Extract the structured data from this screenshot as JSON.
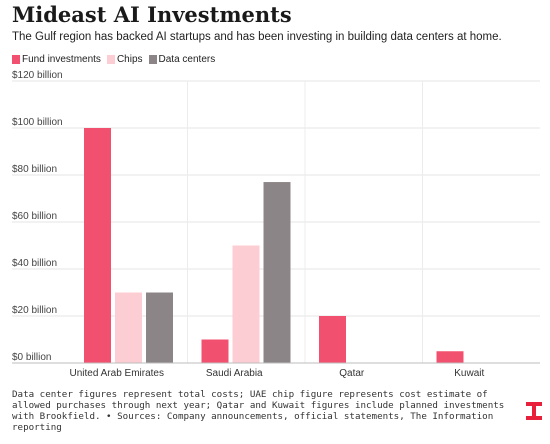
{
  "header": {
    "title": "Mideast AI Investments",
    "subtitle": "The Gulf region has backed AI startups and has been investing in building data centers at home."
  },
  "colors": {
    "fund": "#f2506f",
    "chips": "#fccdd3",
    "data_centers": "#8c8587",
    "logo": "#e8203c"
  },
  "chart_data": {
    "type": "bar",
    "categories": [
      "United Arab Emirates",
      "Saudi Arabia",
      "Qatar",
      "Kuwait"
    ],
    "series": [
      {
        "name": "Fund investments",
        "values": [
          100,
          10,
          20,
          5
        ]
      },
      {
        "name": "Chips",
        "values": [
          30,
          50,
          0,
          0
        ]
      },
      {
        "name": "Data centers",
        "values": [
          30,
          77,
          0,
          0
        ]
      }
    ],
    "yticks": [
      "$0 billion",
      "$20 billion",
      "$40 billion",
      "$60 billion",
      "$80 billion",
      "$100 billion",
      "$120 billion"
    ],
    "ylim": [
      0,
      120
    ],
    "grid": true,
    "legend_position": "top-left"
  },
  "footnote": "Data center figures represent total costs; UAE chip figure represents cost estimate of allowed purchases through next year; Qatar and Kuwait figures include planned investments with Brookfield. • Sources: Company announcements, official statements, The Information reporting",
  "logo_icon": "the-information-logo-icon"
}
